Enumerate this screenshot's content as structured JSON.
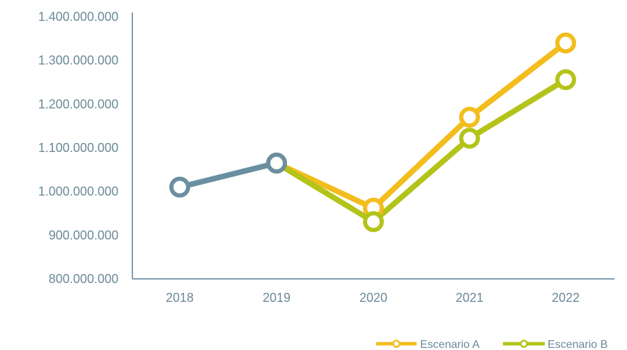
{
  "chart_data": {
    "type": "line",
    "title": "",
    "xlabel": "",
    "ylabel": "",
    "categories": [
      "2018",
      "2019",
      "2020",
      "2021",
      "2022"
    ],
    "ylim": [
      800000000,
      1400000000
    ],
    "yticks": [
      800000000,
      900000000,
      1000000000,
      1100000000,
      1200000000,
      1300000000,
      1400000000
    ],
    "ytick_labels": [
      "800.000.000",
      "900.000.000",
      "1.000.000.000",
      "1.100.000.000",
      "1.200.000.000",
      "1.300.000.000",
      "1.400.000.000"
    ],
    "grid": false,
    "legend_position": "bottom-right",
    "series": [
      {
        "name": "",
        "color": "#6a8fa0",
        "values": [
          1010000000,
          1065000000,
          null,
          null,
          null
        ]
      },
      {
        "name": "Escenario A",
        "color": "#f2bd1d",
        "values": [
          null,
          1065000000,
          962000000,
          1170000000,
          1340000000
        ]
      },
      {
        "name": "Escenario B",
        "color": "#b3c31a",
        "values": [
          null,
          1065000000,
          931000000,
          1122000000,
          1256000000
        ]
      }
    ],
    "legend": [
      {
        "label": "Escenario A",
        "color": "#f2bd1d"
      },
      {
        "label": "Escenario B",
        "color": "#b3c31a"
      }
    ]
  }
}
